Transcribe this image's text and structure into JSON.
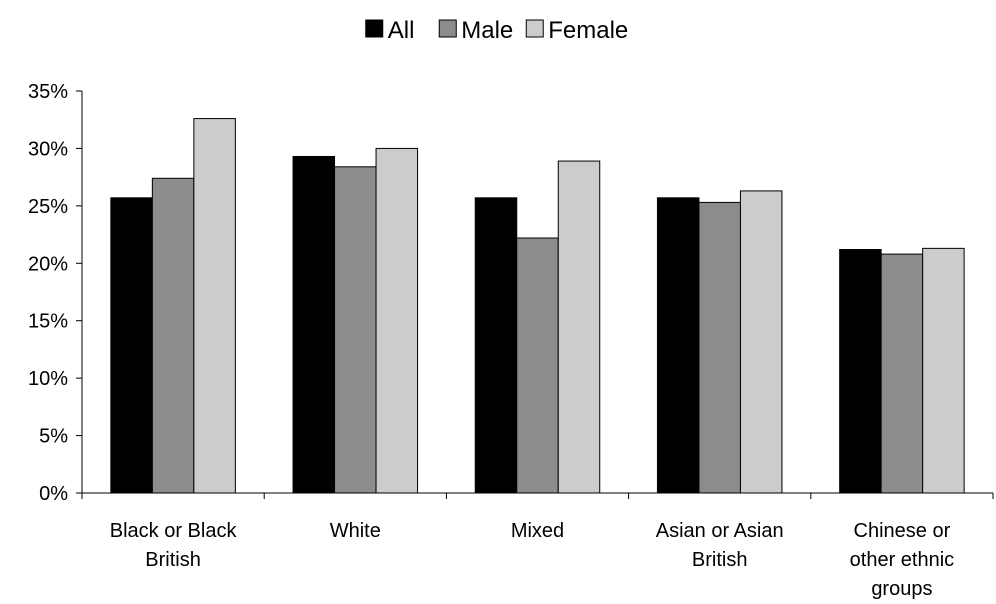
{
  "chart_data": {
    "type": "bar",
    "title": "",
    "xlabel": "",
    "ylabel": "",
    "ylim": [
      0,
      35
    ],
    "y_ticks": [
      "0%",
      "5%",
      "10%",
      "15%",
      "20%",
      "25%",
      "30%",
      "35%"
    ],
    "y_tick_values": [
      0,
      5,
      10,
      15,
      20,
      25,
      30,
      35
    ],
    "grid": false,
    "legend_position": "top-center",
    "categories": [
      [
        "Black or Black",
        "British"
      ],
      [
        "White"
      ],
      [
        "Mixed"
      ],
      [
        "Asian or Asian",
        "British"
      ],
      [
        "Chinese or",
        "other ethnic",
        "groups"
      ]
    ],
    "series": [
      {
        "name": "All",
        "color": "#000000",
        "values": [
          25.7,
          29.3,
          25.7,
          25.7,
          21.2
        ]
      },
      {
        "name": "Male",
        "color": "#8c8c8c",
        "values": [
          27.4,
          28.4,
          22.2,
          25.3,
          20.8
        ]
      },
      {
        "name": "Female",
        "color": "#cccccc",
        "values": [
          32.6,
          30.0,
          28.9,
          26.3,
          21.3
        ]
      }
    ]
  }
}
